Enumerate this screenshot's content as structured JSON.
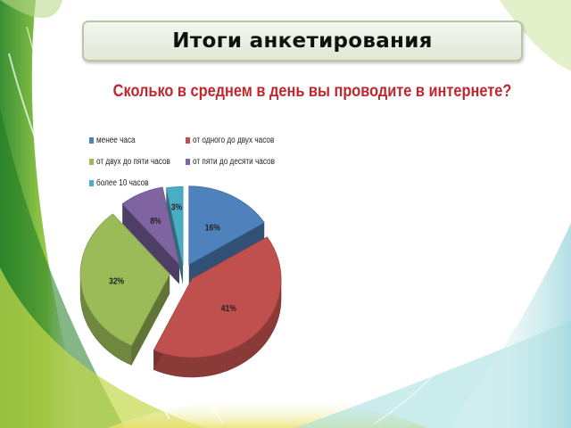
{
  "slide": {
    "title": "Итоги анкетирования"
  },
  "chart_data": {
    "type": "pie",
    "title": "Сколько в среднем в день вы проводите в интернете?",
    "legend_position": "top",
    "categories": [
      "менее часа",
      "от одного до двух часов",
      "от двух до пяти часов",
      "от пяти до десяти часов",
      "более 10 часов"
    ],
    "values": [
      16,
      41,
      32,
      8,
      3
    ],
    "labels": [
      "16%",
      "41%",
      "32%",
      "8%",
      "3%"
    ],
    "unit": "%",
    "colors": [
      "#4f81bd",
      "#c0504d",
      "#9bbb59",
      "#8064a2",
      "#4bacc6"
    ],
    "style": "3d-exploded"
  }
}
